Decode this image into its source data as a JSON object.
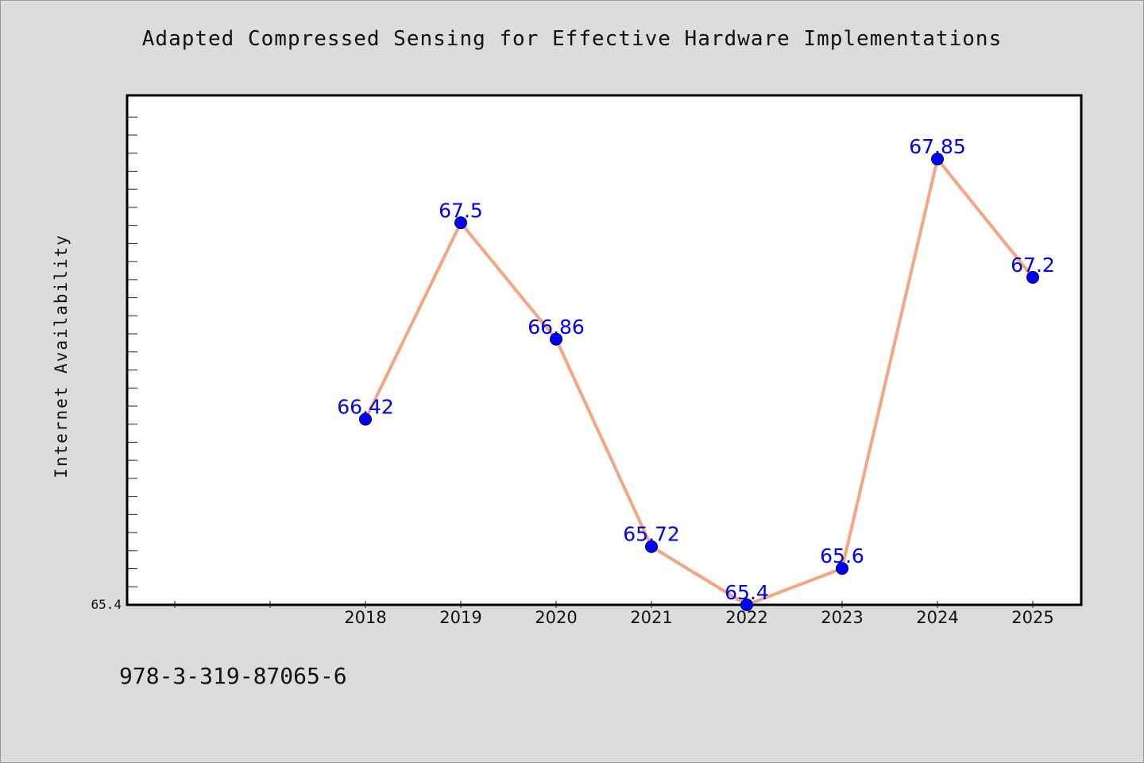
{
  "chart_data": {
    "type": "line",
    "title": "Adapted Compressed Sensing for Effective Hardware Implementations",
    "xlabel": "",
    "ylabel": "Internet Availability",
    "categories": [
      "2018",
      "2019",
      "2020",
      "2021",
      "2022",
      "2023",
      "2024",
      "2025"
    ],
    "series": [
      {
        "values": [
          66.42,
          67.5,
          66.86,
          65.72,
          65.4,
          65.6,
          67.85,
          67.2
        ],
        "data_labels": [
          "66.42",
          "67.5",
          "66.86",
          "65.72",
          "65.4",
          "65.6",
          "67.85",
          "67.2"
        ]
      }
    ],
    "y_tick_labels": [
      "65.4"
    ],
    "ylim": [
      65.4,
      68.2
    ],
    "line_color": "#f4a582",
    "marker_color": "#0000ff",
    "label_color": "#0000ee",
    "grid": false,
    "legend": "none"
  },
  "footer": {
    "isbn": "978-3-319-87065-6"
  }
}
